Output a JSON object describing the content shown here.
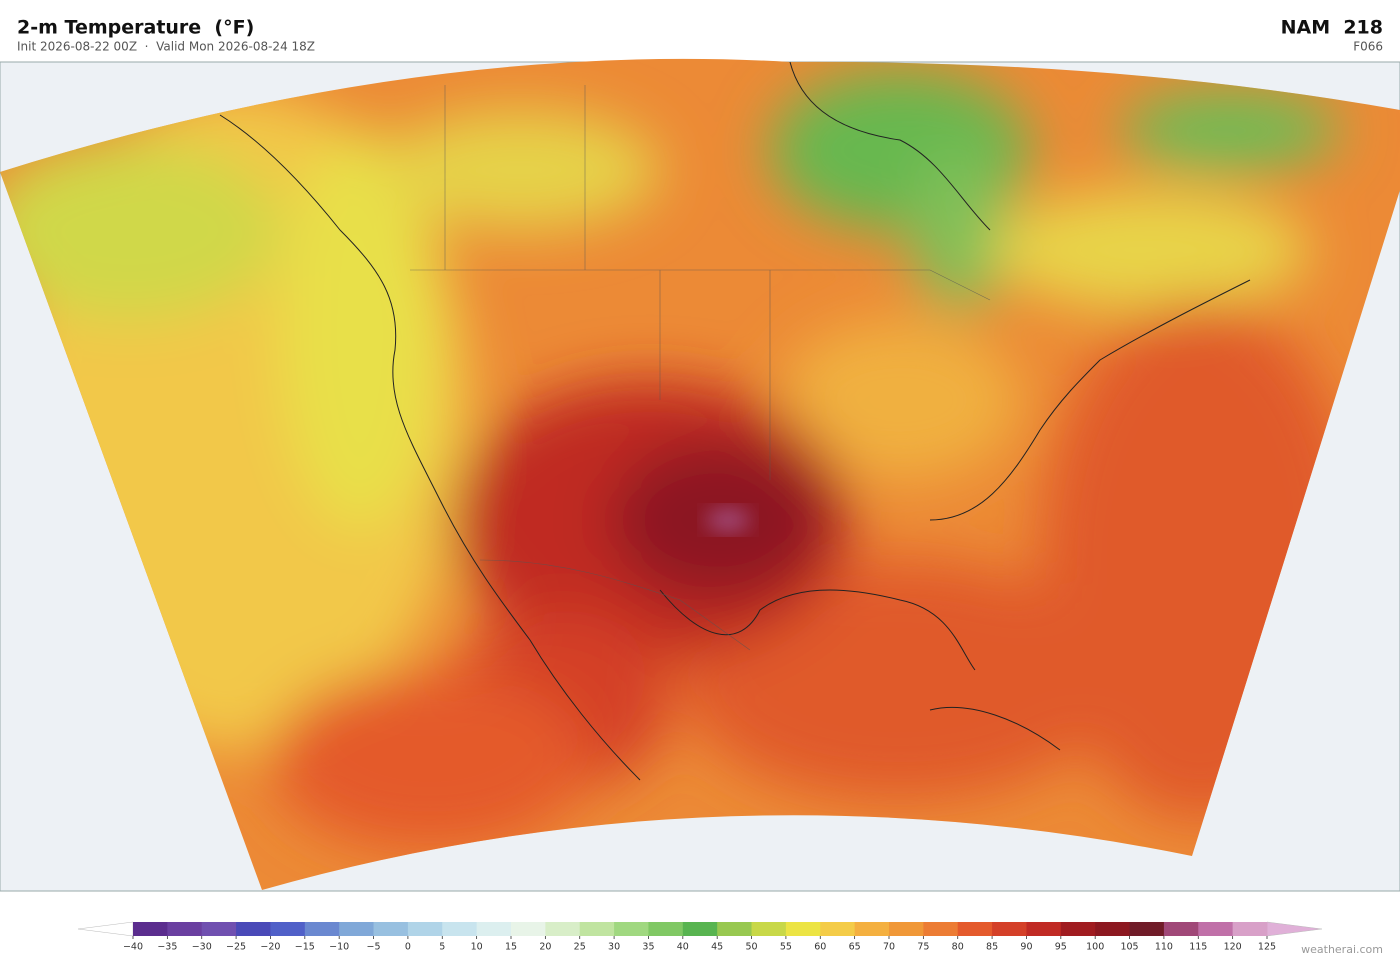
{
  "header": {
    "title": "2-m Temperature  (°F)",
    "subtitle": "Init 2026-08-22 00Z  ·  Valid Mon 2026-08-24 18Z",
    "model": "NAM  218",
    "forecast_hour": "F066"
  },
  "colorbar": {
    "ticks": [
      {
        "value": -40,
        "label": "−40"
      },
      {
        "value": -35,
        "label": "−35"
      },
      {
        "value": -30,
        "label": "−30"
      },
      {
        "value": -25,
        "label": "−25"
      },
      {
        "value": -20,
        "label": "−20"
      },
      {
        "value": -15,
        "label": "−15"
      },
      {
        "value": -10,
        "label": "−10"
      },
      {
        "value": -5,
        "label": "−5"
      },
      0,
      5,
      10,
      15,
      20,
      25,
      30,
      35,
      40,
      45,
      50,
      55,
      60,
      65,
      70,
      75,
      80,
      85,
      90,
      95,
      100,
      105,
      110,
      115,
      120,
      125
    ],
    "colors": [
      "#5b2d8e",
      "#6a3fa0",
      "#7050b0",
      "#4a4ab8",
      "#5060c8",
      "#6a88d0",
      "#80a8d8",
      "#98c0e0",
      "#b0d4e8",
      "#c8e4ee",
      "#dcefef",
      "#e8f4e8",
      "#d8eec8",
      "#c0e4a0",
      "#a0d880",
      "#80c864",
      "#58b450",
      "#98c850",
      "#c8d848",
      "#ece444",
      "#f4cc48",
      "#f4b040",
      "#f09838",
      "#ec7c34",
      "#e45a2c",
      "#d44028",
      "#c02a24",
      "#a01c20",
      "#8c1820",
      "#701c28",
      "#a04878",
      "#c070a8",
      "#d8a0c8"
    ],
    "under_color": "#ffffff",
    "over_color": "#e0b0d8"
  },
  "watermark": "weatherai.com"
}
